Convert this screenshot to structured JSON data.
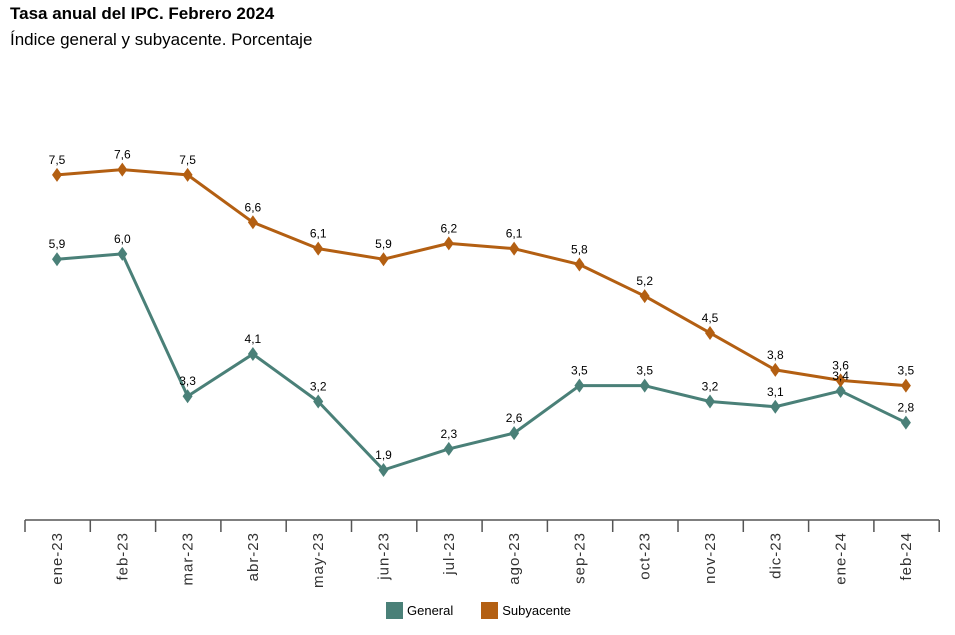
{
  "chart_data": {
    "type": "line",
    "title": "Tasa anual del IPC. Febrero 2024",
    "subtitle": "Índice general y subyacente. Porcentaje",
    "categories": [
      "ene-23",
      "feb-23",
      "mar-23",
      "abr-23",
      "may-23",
      "jun-23",
      "jul-23",
      "ago-23",
      "sep-23",
      "oct-23",
      "nov-23",
      "dic-23",
      "ene-24",
      "feb-24"
    ],
    "series": [
      {
        "name": "General",
        "color": "#4a8078",
        "values": [
          5.9,
          6.0,
          3.3,
          4.1,
          3.2,
          1.9,
          2.3,
          2.6,
          3.5,
          3.5,
          3.2,
          3.1,
          3.4,
          2.8
        ],
        "labels": [
          "5,9",
          "6,0",
          "3,3",
          "4,1",
          "3,2",
          "1,9",
          "2,3",
          "2,6",
          "3,5",
          "3,5",
          "3,2",
          "3,1",
          "3,4",
          "2,8"
        ]
      },
      {
        "name": "Subyacente",
        "color": "#b35f12",
        "values": [
          7.5,
          7.6,
          7.5,
          6.6,
          6.1,
          5.9,
          6.2,
          6.1,
          5.8,
          5.2,
          4.5,
          3.8,
          3.6,
          3.5
        ],
        "labels": [
          "7,5",
          "7,6",
          "7,5",
          "6,6",
          "6,1",
          "5,9",
          "6,2",
          "6,1",
          "5,8",
          "5,2",
          "4,5",
          "3,8",
          "3,6",
          "3,5"
        ]
      }
    ],
    "grid": false,
    "legend_position": "bottom"
  }
}
